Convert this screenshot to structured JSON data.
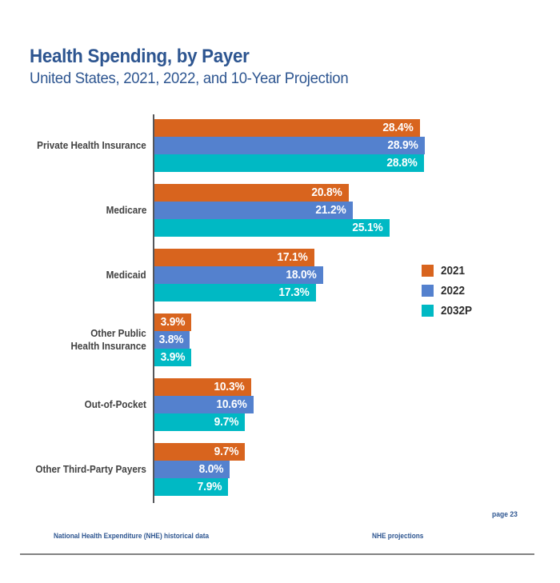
{
  "header": {
    "title": "Health Spending, by Payer",
    "subtitle": "United States, 2021, 2022, and 10-Year Projection"
  },
  "chart_data": {
    "type": "bar",
    "orientation": "horizontal",
    "title": "Health Spending, by Payer",
    "subtitle": "United States, 2021, 2022, and 10-Year Projection",
    "value_unit": "percent",
    "xlim": [
      0,
      30
    ],
    "grid": false,
    "legend_position": "right",
    "data_labels": "inside-end",
    "categories": [
      "Private Health Insurance",
      "Medicare",
      "Medicaid",
      "Other Public\nHealth Insurance",
      "Out-of-Pocket",
      "Other Third-Party Payers"
    ],
    "series": [
      {
        "name": "2021",
        "color": "#D8641E",
        "values": [
          28.4,
          20.8,
          17.1,
          3.9,
          10.3,
          9.7
        ]
      },
      {
        "name": "2022",
        "color": "#5481CE",
        "values": [
          28.9,
          21.2,
          18.0,
          3.8,
          10.6,
          8.0
        ]
      },
      {
        "name": "2032P",
        "color": "#00B9C4",
        "values": [
          28.8,
          25.1,
          17.3,
          3.9,
          9.7,
          7.9
        ]
      }
    ]
  },
  "colors": {
    "title_blue": "#2D5590",
    "axis_gray": "#55565A",
    "category_label_gray": "#414141",
    "legend_text": "#2C2C2C",
    "footer_rule_gray": "#828282",
    "bar_label_white": "#FFFFFF"
  },
  "footer": {
    "page_label": "page 23",
    "source_left": "National Health Expenditure (NHE) historical data",
    "source_right": "NHE projections"
  }
}
